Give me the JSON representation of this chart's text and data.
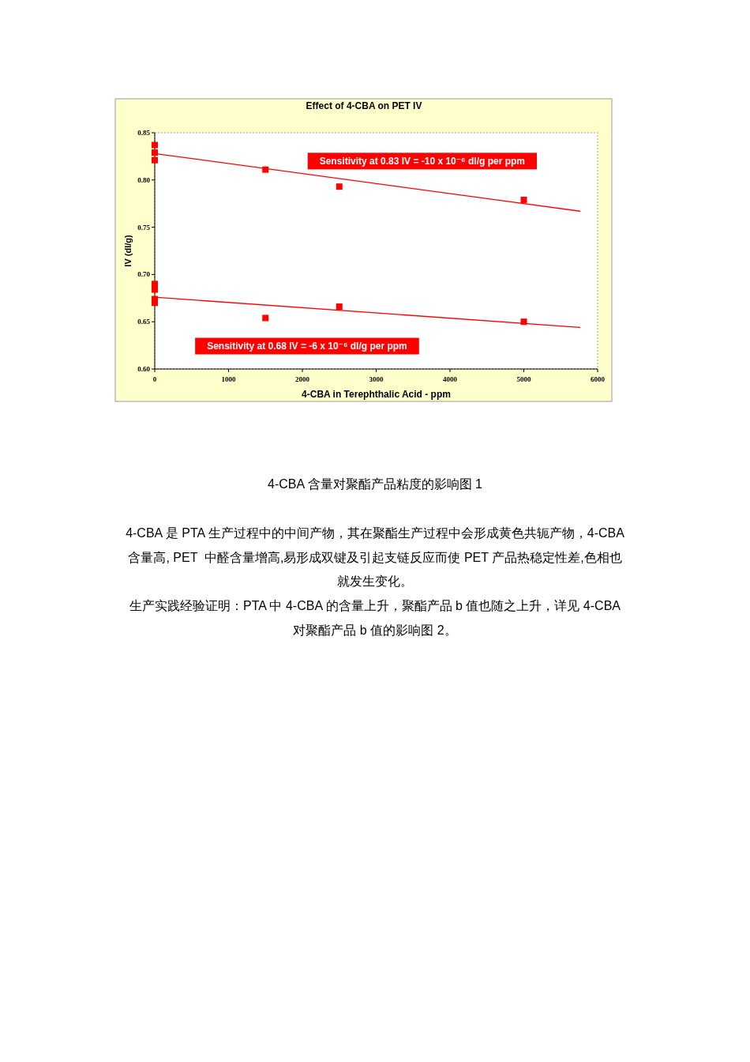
{
  "chart_data": {
    "type": "scatter",
    "title": "Effect of 4-CBA on PET IV",
    "xlabel": "4-CBA in Terephthalic Acid - ppm",
    "ylabel": "IV (dl/g)",
    "xlim": [
      0,
      6000
    ],
    "xticks": [
      0,
      1000,
      2000,
      3000,
      4000,
      5000,
      6000
    ],
    "ylim": [
      0.6,
      0.85
    ],
    "yticks": [
      {
        "value": 0.6,
        "label": "0.60"
      },
      0.65,
      {
        "value": 0.7,
        "label": "0.70"
      },
      0.75,
      {
        "value": 0.8,
        "label": "0.80"
      },
      0.85
    ],
    "marker": "square",
    "series": [
      {
        "color": "#ff0000",
        "x": [
          0,
          0,
          0,
          1500,
          2500,
          5000
        ],
        "values": [
          0.837,
          0.829,
          0.821,
          0.811,
          0.793,
          0.779
        ]
      },
      {
        "color": "#ff0000",
        "x": [
          0,
          0,
          0,
          0,
          1500,
          2500,
          5000
        ],
        "values": [
          0.69,
          0.684,
          0.674,
          0.67,
          0.654,
          0.666,
          0.65
        ]
      },
      {
        "type": "line",
        "color": "#ff0000",
        "marker": "none",
        "x": [
          0,
          5760
        ],
        "values": [
          0.828,
          0.767
        ]
      },
      {
        "type": "line",
        "color": "#ff0000",
        "marker": "none",
        "x": [
          0,
          5760
        ],
        "values": [
          0.676,
          0.644
        ]
      }
    ],
    "annotations": [
      "Sensitivity at 0.83 IV = -10 x 10⁻⁶ dl/g per ppm",
      "Sensitivity at 0.68 IV = -6 x 10⁻⁶ dl/g per ppm",
      "4-CBA 含量对聚酯产品粘度的影响图 1",
      "4-CBA 是 PTA 生产过程中的中间产物，其在聚酯生产过程中会形成黄色共轭产物，4-CBA 含量高, PET  中醛含量增高,易形成双键及引起支链反应而使 PET 产品热稳定性差,色相也就发生变化。",
      "生产实践经验证明：PTA 中 4-CBA 的含量上升，聚酯产品 b 值也随之上升，详见 4-CBA 对聚酯产品 b 值的影响图 2。"
    ]
  }
}
